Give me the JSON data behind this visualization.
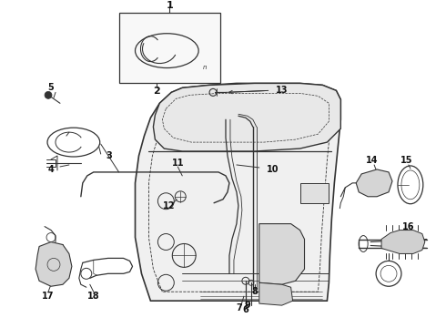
{
  "bg_color": "#ffffff",
  "lc": "#333333",
  "figsize": [
    4.9,
    3.6
  ],
  "dpi": 100
}
